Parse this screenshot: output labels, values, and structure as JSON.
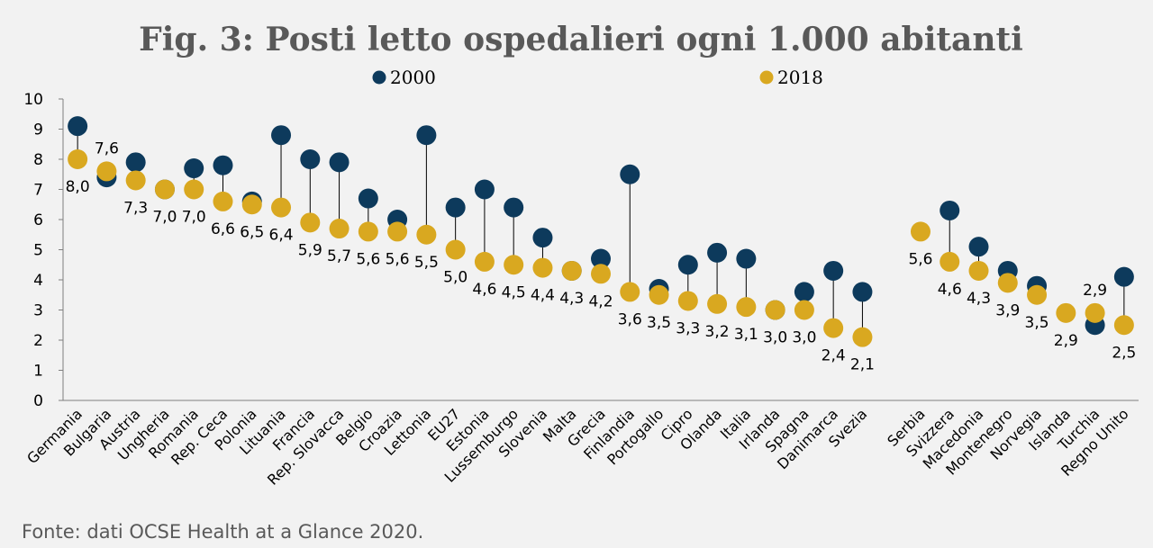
{
  "chart_data": {
    "type": "scatter",
    "title": "Fig. 3: Posti letto ospedalieri ogni 1.000 abitanti",
    "source": "Fonte: dati OCSE Health at a Glance 2020.",
    "ylim": [
      0,
      10
    ],
    "yticks": [
      "0",
      "1",
      "2",
      "3",
      "4",
      "5",
      "6",
      "7",
      "8",
      "9",
      "10"
    ],
    "grid": false,
    "legend_position": "top",
    "colors": {
      "2000": "#0d3a5c",
      "2018": "#d9a820",
      "connector": "#000000",
      "axis": "#7f7f7f"
    },
    "series": [
      {
        "name": "2000"
      },
      {
        "name": "2018"
      }
    ],
    "categories": [
      {
        "name": "Germania",
        "v2000": 9.1,
        "v2018": 8.0,
        "label": "8,0",
        "pos": "below"
      },
      {
        "name": "Bulgaria",
        "v2000": 7.4,
        "v2018": 7.6,
        "label": "7,6",
        "pos": "above"
      },
      {
        "name": "Austria",
        "v2000": 7.9,
        "v2018": 7.3,
        "label": "7,3",
        "pos": "below"
      },
      {
        "name": "Ungheria",
        "v2000": 7.0,
        "v2018": 7.0,
        "label": "7,0",
        "pos": "below"
      },
      {
        "name": "Romania",
        "v2000": 7.7,
        "v2018": 7.0,
        "label": "7,0",
        "pos": "below"
      },
      {
        "name": "Rep. Ceca",
        "v2000": 7.8,
        "v2018": 6.6,
        "label": "6,6",
        "pos": "below"
      },
      {
        "name": "Polonia",
        "v2000": 6.6,
        "v2018": 6.5,
        "label": "6,5",
        "pos": "below"
      },
      {
        "name": "Lituania",
        "v2000": 8.8,
        "v2018": 6.4,
        "label": "6,4",
        "pos": "below"
      },
      {
        "name": "Francia",
        "v2000": 8.0,
        "v2018": 5.9,
        "label": "5,9",
        "pos": "below"
      },
      {
        "name": "Rep. Slovacca",
        "v2000": 7.9,
        "v2018": 5.7,
        "label": "5,7",
        "pos": "below"
      },
      {
        "name": "Belgio",
        "v2000": 6.7,
        "v2018": 5.6,
        "label": "5,6",
        "pos": "below"
      },
      {
        "name": "Croazia",
        "v2000": 6.0,
        "v2018": 5.6,
        "label": "5,6",
        "pos": "below"
      },
      {
        "name": "Lettonia",
        "v2000": 8.8,
        "v2018": 5.5,
        "label": "5,5",
        "pos": "below"
      },
      {
        "name": "EU27",
        "v2000": 6.4,
        "v2018": 5.0,
        "label": "5,0",
        "pos": "below"
      },
      {
        "name": "Estonia",
        "v2000": 7.0,
        "v2018": 4.6,
        "label": "4,6",
        "pos": "below"
      },
      {
        "name": "Lussemburgo",
        "v2000": 6.4,
        "v2018": 4.5,
        "label": "4,5",
        "pos": "below"
      },
      {
        "name": "Slovenia",
        "v2000": 5.4,
        "v2018": 4.4,
        "label": "4,4",
        "pos": "below"
      },
      {
        "name": "Malta",
        "v2000": 4.3,
        "v2018": 4.3,
        "label": "4,3",
        "pos": "below"
      },
      {
        "name": "Grecia",
        "v2000": 4.7,
        "v2018": 4.2,
        "label": "4,2",
        "pos": "below"
      },
      {
        "name": "Finlandia",
        "v2000": 7.5,
        "v2018": 3.6,
        "label": "3,6",
        "pos": "below"
      },
      {
        "name": "Portogallo",
        "v2000": 3.7,
        "v2018": 3.5,
        "label": "3,5",
        "pos": "below"
      },
      {
        "name": "Cipro",
        "v2000": 4.5,
        "v2018": 3.3,
        "label": "3,3",
        "pos": "below"
      },
      {
        "name": "Olanda",
        "v2000": 4.9,
        "v2018": 3.2,
        "label": "3,2",
        "pos": "below"
      },
      {
        "name": "Italia",
        "v2000": 4.7,
        "v2018": 3.1,
        "label": "3,1",
        "pos": "below"
      },
      {
        "name": "Irlanda",
        "v2000": 3.0,
        "v2018": 3.0,
        "label": "3,0",
        "pos": "below"
      },
      {
        "name": "Spagna",
        "v2000": 3.6,
        "v2018": 3.0,
        "label": "3,0",
        "pos": "below"
      },
      {
        "name": "Danimarca",
        "v2000": 4.3,
        "v2018": 2.4,
        "label": "2,4",
        "pos": "below"
      },
      {
        "name": "Svezia",
        "v2000": 3.6,
        "v2018": 2.1,
        "label": "2,1",
        "pos": "below"
      },
      {
        "name": "",
        "v2000": null,
        "v2018": null,
        "label": "",
        "pos": "below"
      },
      {
        "name": "Serbia",
        "v2000": null,
        "v2018": 5.6,
        "label": "5,6",
        "pos": "below"
      },
      {
        "name": "Svizzera",
        "v2000": 6.3,
        "v2018": 4.6,
        "label": "4,6",
        "pos": "below"
      },
      {
        "name": "Macedonia",
        "v2000": 5.1,
        "v2018": 4.3,
        "label": "4,3",
        "pos": "below"
      },
      {
        "name": "Montenegro",
        "v2000": 4.3,
        "v2018": 3.9,
        "label": "3,9",
        "pos": "below"
      },
      {
        "name": "Norvegia",
        "v2000": 3.8,
        "v2018": 3.5,
        "label": "3,5",
        "pos": "below"
      },
      {
        "name": "Islanda",
        "v2000": null,
        "v2018": 2.9,
        "label": "2,9",
        "pos": "below"
      },
      {
        "name": "Turchia",
        "v2000": 2.5,
        "v2018": 2.9,
        "label": "2,9",
        "pos": "above"
      },
      {
        "name": "Regno Unito",
        "v2000": 4.1,
        "v2018": 2.5,
        "label": "2,5",
        "pos": "below"
      }
    ]
  }
}
